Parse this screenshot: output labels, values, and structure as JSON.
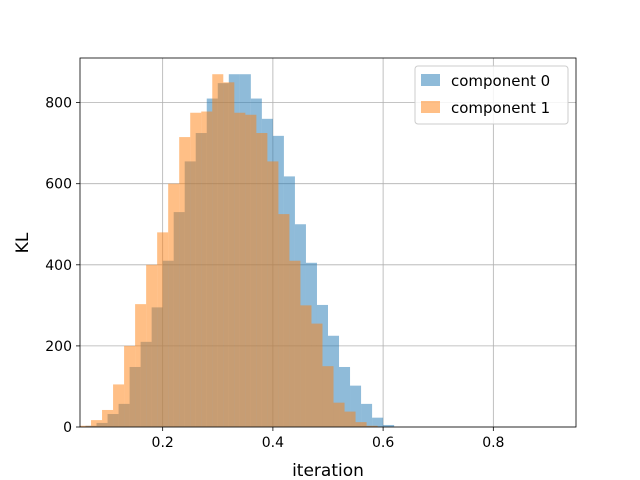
{
  "chart_data": {
    "type": "bar",
    "subtype": "overlaid-histogram",
    "xlabel": "iteration",
    "ylabel": "KL",
    "xlim": [
      0.05,
      0.95
    ],
    "ylim": [
      0,
      910
    ],
    "xticks": [
      0.2,
      0.4,
      0.6,
      0.8
    ],
    "yticks": [
      0,
      200,
      400,
      600,
      800
    ],
    "xtick_labels": [
      "0.2",
      "0.4",
      "0.6",
      "0.8"
    ],
    "ytick_labels": [
      "0",
      "200",
      "400",
      "600",
      "800"
    ],
    "grid": true,
    "legend_position": "top-right",
    "bin_width": 0.02,
    "series": [
      {
        "name": "component 0",
        "color": "#1f77b4",
        "opacity": 0.5,
        "start": 0.06,
        "values": [
          3,
          10,
          32,
          57,
          148,
          210,
          295,
          410,
          530,
          655,
          725,
          810,
          848,
          870,
          870,
          810,
          760,
          718,
          618,
          500,
          405,
          301,
          225,
          148,
          102,
          57,
          23,
          5
        ]
      },
      {
        "name": "component 1",
        "color": "#ff7f0e",
        "opacity": 0.5,
        "start": 0.05,
        "values": [
          3,
          17,
          42,
          105,
          200,
          303,
          400,
          480,
          600,
          715,
          775,
          778,
          870,
          850,
          775,
          770,
          725,
          655,
          525,
          410,
          300,
          255,
          150,
          60,
          38,
          12,
          3
        ]
      }
    ]
  }
}
